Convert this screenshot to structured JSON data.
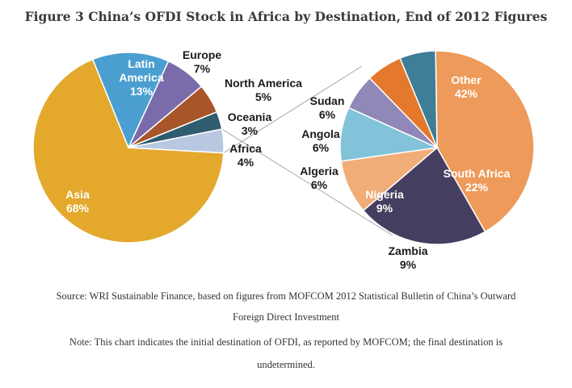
{
  "chart_data": [
    {
      "type": "pie",
      "title": "Figure 3 China’s OFDI Stock in Africa by Destination, End of 2012 Figures",
      "slices": [
        {
          "name": "Asia",
          "value": 68,
          "label": "68%",
          "color": "#E3A82C"
        },
        {
          "name": "Latin America",
          "value": 13,
          "label": "13%",
          "color": "#4A9FD0"
        },
        {
          "name": "Europe",
          "value": 7,
          "label": "7%",
          "color": "#7A6BAA"
        },
        {
          "name": "North America",
          "value": 5,
          "label": "5%",
          "color": "#A8552A"
        },
        {
          "name": "Oceania",
          "value": 3,
          "label": "3%",
          "color": "#2F5C6E"
        },
        {
          "name": "Africa",
          "value": 4,
          "label": "4%",
          "color": "#B9C8E0"
        }
      ]
    },
    {
      "type": "pie",
      "breakdown_of": "Africa",
      "slices": [
        {
          "name": "Other",
          "value": 42,
          "label": "42%",
          "color": "#EE9A5A"
        },
        {
          "name": "South Africa",
          "value": 22,
          "label": "22%",
          "color": "#463E60"
        },
        {
          "name": "Zambia",
          "value": 9,
          "label": "9%",
          "color": "#F0AD78"
        },
        {
          "name": "Nigeria",
          "value": 9,
          "label": "9%",
          "color": "#82C3DA"
        },
        {
          "name": "Algeria",
          "value": 6,
          "label": "6%",
          "color": "#9088B6"
        },
        {
          "name": "Angola",
          "value": 6,
          "label": "6%",
          "color": "#E4782C"
        },
        {
          "name": "Sudan",
          "value": 6,
          "label": "6%",
          "color": "#3E7E96"
        }
      ]
    }
  ],
  "source": "Source: WRI Sustainable Finance, based on figures from MOFCOM 2012 Statistical Bulletin of China’s Outward Foreign Direct Investment",
  "note": "Note: This chart indicates the initial destination of OFDI, as reported by MOFCOM; the final destination is undetermined."
}
